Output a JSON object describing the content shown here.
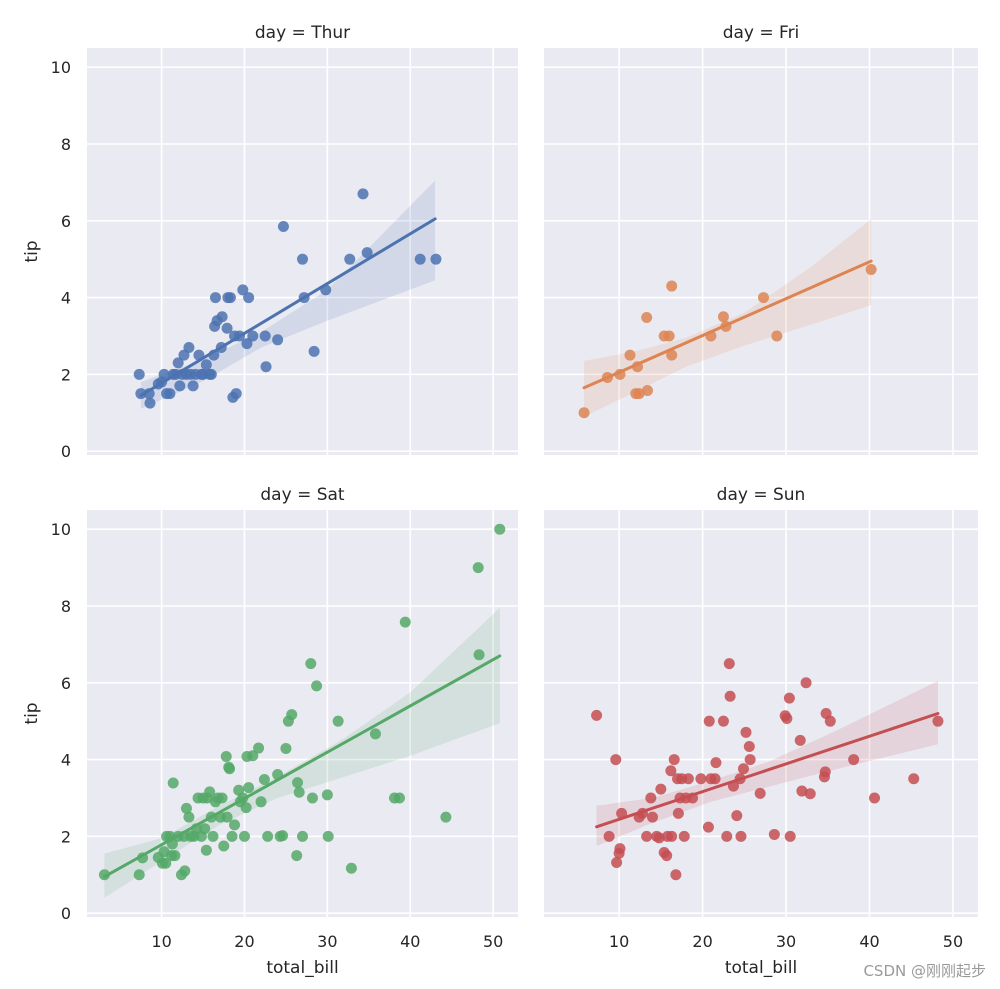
{
  "figure": {
    "watermark": "CSDN @刚刚起步",
    "colors": {
      "background": "#eaeaf2",
      "grid": "#ffffff",
      "text": "#262626"
    }
  },
  "chart_data": [
    {
      "type": "scatter",
      "title": "day = Thur",
      "xlabel": "",
      "ylabel": "tip",
      "color": "#4c72b0",
      "xlim": [
        1.0,
        53.0
      ],
      "ylim": [
        -0.1,
        10.5
      ],
      "xticks": [
        10,
        20,
        30,
        40,
        50
      ],
      "yticks": [
        0,
        2,
        4,
        6,
        8,
        10
      ],
      "show_xticklabels": false,
      "show_yticklabels": true,
      "regression": {
        "x": [
          7.5,
          43.0
        ],
        "y": [
          1.45,
          6.05
        ]
      },
      "ci": {
        "x": [
          7.5,
          15,
          22,
          30,
          43
        ],
        "lower": [
          1.1,
          1.82,
          2.7,
          3.4,
          4.45
        ],
        "upper": [
          1.8,
          2.38,
          3.1,
          4.2,
          7.05
        ]
      },
      "points": [
        {
          "x": 7.3,
          "y": 2.0
        },
        {
          "x": 7.5,
          "y": 1.5
        },
        {
          "x": 8.5,
          "y": 1.5
        },
        {
          "x": 8.6,
          "y": 1.25
        },
        {
          "x": 9.6,
          "y": 1.75
        },
        {
          "x": 10.0,
          "y": 1.8
        },
        {
          "x": 10.3,
          "y": 2.0
        },
        {
          "x": 10.6,
          "y": 1.5
        },
        {
          "x": 11.0,
          "y": 1.5
        },
        {
          "x": 11.4,
          "y": 2.0
        },
        {
          "x": 11.7,
          "y": 2.0
        },
        {
          "x": 12.0,
          "y": 2.3
        },
        {
          "x": 12.2,
          "y": 1.7
        },
        {
          "x": 12.5,
          "y": 2.0
        },
        {
          "x": 12.7,
          "y": 2.5
        },
        {
          "x": 13.0,
          "y": 2.0
        },
        {
          "x": 13.3,
          "y": 2.7
        },
        {
          "x": 13.5,
          "y": 2.0
        },
        {
          "x": 13.8,
          "y": 1.7
        },
        {
          "x": 14.1,
          "y": 2.0
        },
        {
          "x": 14.5,
          "y": 2.5
        },
        {
          "x": 14.8,
          "y": 2.0
        },
        {
          "x": 15.0,
          "y": 2.0
        },
        {
          "x": 15.4,
          "y": 2.25
        },
        {
          "x": 15.8,
          "y": 2.0
        },
        {
          "x": 16.0,
          "y": 2.0
        },
        {
          "x": 16.3,
          "y": 2.5
        },
        {
          "x": 16.4,
          "y": 3.25
        },
        {
          "x": 16.5,
          "y": 4.0
        },
        {
          "x": 16.7,
          "y": 3.4
        },
        {
          "x": 17.2,
          "y": 2.7
        },
        {
          "x": 17.3,
          "y": 3.5
        },
        {
          "x": 17.9,
          "y": 3.2
        },
        {
          "x": 18.0,
          "y": 4.0
        },
        {
          "x": 18.3,
          "y": 4.0
        },
        {
          "x": 18.6,
          "y": 1.4
        },
        {
          "x": 18.8,
          "y": 3.0
        },
        {
          "x": 19.0,
          "y": 1.5
        },
        {
          "x": 19.4,
          "y": 3.0
        },
        {
          "x": 19.8,
          "y": 4.2
        },
        {
          "x": 20.3,
          "y": 2.8
        },
        {
          "x": 20.5,
          "y": 4.0
        },
        {
          "x": 21.0,
          "y": 3.0
        },
        {
          "x": 22.5,
          "y": 3.0
        },
        {
          "x": 22.6,
          "y": 2.2
        },
        {
          "x": 24.0,
          "y": 2.9
        },
        {
          "x": 24.7,
          "y": 5.85
        },
        {
          "x": 27.0,
          "y": 5.0
        },
        {
          "x": 27.2,
          "y": 4.0
        },
        {
          "x": 28.4,
          "y": 2.6
        },
        {
          "x": 29.8,
          "y": 4.2
        },
        {
          "x": 32.7,
          "y": 5.0
        },
        {
          "x": 34.3,
          "y": 6.7
        },
        {
          "x": 34.8,
          "y": 5.17
        },
        {
          "x": 41.2,
          "y": 5.0
        },
        {
          "x": 43.1,
          "y": 5.0
        }
      ]
    },
    {
      "type": "scatter",
      "title": "day = Fri",
      "xlabel": "",
      "ylabel": "",
      "color": "#dd8452",
      "xlim": [
        1.0,
        53.0
      ],
      "ylim": [
        -0.1,
        10.5
      ],
      "xticks": [
        10,
        20,
        30,
        40,
        50
      ],
      "yticks": [
        0,
        2,
        4,
        6,
        8,
        10
      ],
      "show_xticklabels": false,
      "show_yticklabels": false,
      "regression": {
        "x": [
          5.8,
          40.2
        ],
        "y": [
          1.65,
          4.95
        ]
      },
      "ci": {
        "x": [
          5.8,
          12,
          18,
          25,
          33,
          40.2
        ],
        "lower": [
          0.9,
          1.55,
          2.2,
          2.75,
          3.3,
          3.8
        ],
        "upper": [
          2.35,
          2.6,
          2.95,
          3.6,
          4.8,
          6.05
        ]
      },
      "points": [
        {
          "x": 5.8,
          "y": 1.0
        },
        {
          "x": 8.6,
          "y": 1.92
        },
        {
          "x": 10.1,
          "y": 2.0
        },
        {
          "x": 11.3,
          "y": 2.5
        },
        {
          "x": 12.0,
          "y": 1.5
        },
        {
          "x": 12.2,
          "y": 2.2
        },
        {
          "x": 12.4,
          "y": 1.5
        },
        {
          "x": 13.3,
          "y": 3.48
        },
        {
          "x": 13.4,
          "y": 1.58
        },
        {
          "x": 15.4,
          "y": 3.0
        },
        {
          "x": 16.0,
          "y": 3.0
        },
        {
          "x": 16.3,
          "y": 4.3
        },
        {
          "x": 16.3,
          "y": 2.5
        },
        {
          "x": 21.0,
          "y": 3.0
        },
        {
          "x": 22.5,
          "y": 3.5
        },
        {
          "x": 22.8,
          "y": 3.25
        },
        {
          "x": 27.3,
          "y": 4.0
        },
        {
          "x": 28.9,
          "y": 3.0
        },
        {
          "x": 40.2,
          "y": 4.73
        }
      ]
    },
    {
      "type": "scatter",
      "title": "day = Sat",
      "xlabel": "total_bill",
      "ylabel": "tip",
      "color": "#55a868",
      "xlim": [
        1.0,
        53.0
      ],
      "ylim": [
        -0.1,
        10.5
      ],
      "xticks": [
        10,
        20,
        30,
        40,
        50
      ],
      "yticks": [
        0,
        2,
        4,
        6,
        8,
        10
      ],
      "show_xticklabels": true,
      "show_yticklabels": true,
      "regression": {
        "x": [
          3.1,
          50.8
        ],
        "y": [
          0.95,
          6.7
        ]
      },
      "ci": {
        "x": [
          3.1,
          10,
          17,
          24,
          32,
          40,
          50.8
        ],
        "lower": [
          0.4,
          1.35,
          2.3,
          3.0,
          3.55,
          4.1,
          4.95
        ],
        "upper": [
          1.55,
          1.95,
          2.8,
          3.55,
          4.55,
          5.75,
          7.95
        ]
      },
      "points": [
        {
          "x": 3.1,
          "y": 1.0
        },
        {
          "x": 7.3,
          "y": 1.0
        },
        {
          "x": 7.7,
          "y": 1.44
        },
        {
          "x": 9.6,
          "y": 1.45
        },
        {
          "x": 10.1,
          "y": 1.3
        },
        {
          "x": 10.3,
          "y": 1.6
        },
        {
          "x": 10.5,
          "y": 1.3
        },
        {
          "x": 10.6,
          "y": 2.0
        },
        {
          "x": 11.0,
          "y": 2.0
        },
        {
          "x": 11.2,
          "y": 1.5
        },
        {
          "x": 11.3,
          "y": 1.8
        },
        {
          "x": 11.4,
          "y": 3.39
        },
        {
          "x": 11.6,
          "y": 1.5
        },
        {
          "x": 12.0,
          "y": 2.0
        },
        {
          "x": 12.4,
          "y": 1.0
        },
        {
          "x": 12.7,
          "y": 2.0
        },
        {
          "x": 12.8,
          "y": 1.1
        },
        {
          "x": 13.0,
          "y": 2.73
        },
        {
          "x": 13.3,
          "y": 2.5
        },
        {
          "x": 13.5,
          "y": 2.0
        },
        {
          "x": 13.9,
          "y": 2.0
        },
        {
          "x": 14.2,
          "y": 2.2
        },
        {
          "x": 14.4,
          "y": 3.0
        },
        {
          "x": 14.8,
          "y": 2.0
        },
        {
          "x": 15.0,
          "y": 3.0
        },
        {
          "x": 15.2,
          "y": 2.2
        },
        {
          "x": 15.4,
          "y": 1.64
        },
        {
          "x": 15.5,
          "y": 3.0
        },
        {
          "x": 15.8,
          "y": 3.16
        },
        {
          "x": 16.0,
          "y": 2.5
        },
        {
          "x": 16.2,
          "y": 2.0
        },
        {
          "x": 16.5,
          "y": 2.9
        },
        {
          "x": 16.8,
          "y": 3.0
        },
        {
          "x": 17.1,
          "y": 2.5
        },
        {
          "x": 17.3,
          "y": 3.0
        },
        {
          "x": 17.5,
          "y": 1.75
        },
        {
          "x": 17.8,
          "y": 4.08
        },
        {
          "x": 17.9,
          "y": 2.5
        },
        {
          "x": 18.1,
          "y": 3.8
        },
        {
          "x": 18.2,
          "y": 3.76
        },
        {
          "x": 18.5,
          "y": 2.0
        },
        {
          "x": 18.8,
          "y": 2.3
        },
        {
          "x": 19.3,
          "y": 3.2
        },
        {
          "x": 19.5,
          "y": 2.9
        },
        {
          "x": 19.8,
          "y": 3.0
        },
        {
          "x": 20.0,
          "y": 2.0
        },
        {
          "x": 20.2,
          "y": 2.75
        },
        {
          "x": 20.3,
          "y": 4.08
        },
        {
          "x": 20.5,
          "y": 3.27
        },
        {
          "x": 21.0,
          "y": 4.1
        },
        {
          "x": 21.7,
          "y": 4.3
        },
        {
          "x": 22.0,
          "y": 2.9
        },
        {
          "x": 22.4,
          "y": 3.48
        },
        {
          "x": 22.8,
          "y": 2.0
        },
        {
          "x": 24.0,
          "y": 3.61
        },
        {
          "x": 24.3,
          "y": 2.0
        },
        {
          "x": 24.6,
          "y": 2.02
        },
        {
          "x": 25.0,
          "y": 4.29
        },
        {
          "x": 25.3,
          "y": 5.0
        },
        {
          "x": 25.7,
          "y": 5.17
        },
        {
          "x": 26.3,
          "y": 1.5
        },
        {
          "x": 26.4,
          "y": 3.4
        },
        {
          "x": 26.6,
          "y": 3.15
        },
        {
          "x": 27.0,
          "y": 2.0
        },
        {
          "x": 28.0,
          "y": 6.5
        },
        {
          "x": 28.2,
          "y": 3.0
        },
        {
          "x": 28.7,
          "y": 5.92
        },
        {
          "x": 30.0,
          "y": 3.08
        },
        {
          "x": 30.1,
          "y": 2.0
        },
        {
          "x": 31.3,
          "y": 5.0
        },
        {
          "x": 32.9,
          "y": 1.17
        },
        {
          "x": 35.8,
          "y": 4.67
        },
        {
          "x": 38.1,
          "y": 3.0
        },
        {
          "x": 38.7,
          "y": 3.0
        },
        {
          "x": 39.4,
          "y": 7.58
        },
        {
          "x": 44.3,
          "y": 2.5
        },
        {
          "x": 48.2,
          "y": 9.0
        },
        {
          "x": 48.3,
          "y": 6.73
        },
        {
          "x": 50.8,
          "y": 10.0
        }
      ]
    },
    {
      "type": "scatter",
      "title": "day = Sun",
      "xlabel": "total_bill",
      "ylabel": "",
      "color": "#c44e52",
      "xlim": [
        1.0,
        53.0
      ],
      "ylim": [
        -0.1,
        10.5
      ],
      "xticks": [
        10,
        20,
        30,
        40,
        50
      ],
      "yticks": [
        0,
        2,
        4,
        6,
        8,
        10
      ],
      "show_xticklabels": true,
      "show_yticklabels": false,
      "regression": {
        "x": [
          7.3,
          48.2
        ],
        "y": [
          2.25,
          5.2
        ]
      },
      "ci": {
        "x": [
          7.3,
          14,
          21,
          28,
          36,
          48.2
        ],
        "lower": [
          1.75,
          2.35,
          2.9,
          3.3,
          3.75,
          4.4
        ],
        "upper": [
          2.8,
          3.0,
          3.45,
          3.95,
          4.75,
          6.05
        ]
      },
      "points": [
        {
          "x": 7.3,
          "y": 5.15
        },
        {
          "x": 8.8,
          "y": 2.0
        },
        {
          "x": 9.6,
          "y": 4.0
        },
        {
          "x": 9.7,
          "y": 1.32
        },
        {
          "x": 10.0,
          "y": 1.56
        },
        {
          "x": 10.1,
          "y": 1.68
        },
        {
          "x": 10.3,
          "y": 2.6
        },
        {
          "x": 12.4,
          "y": 2.5
        },
        {
          "x": 12.8,
          "y": 2.6
        },
        {
          "x": 13.3,
          "y": 2.0
        },
        {
          "x": 13.8,
          "y": 3.0
        },
        {
          "x": 14.0,
          "y": 2.5
        },
        {
          "x": 14.5,
          "y": 2.0
        },
        {
          "x": 14.8,
          "y": 1.96
        },
        {
          "x": 15.0,
          "y": 3.23
        },
        {
          "x": 15.4,
          "y": 1.58
        },
        {
          "x": 15.7,
          "y": 1.5
        },
        {
          "x": 15.8,
          "y": 2.0
        },
        {
          "x": 16.2,
          "y": 3.71
        },
        {
          "x": 16.3,
          "y": 2.0
        },
        {
          "x": 16.6,
          "y": 4.0
        },
        {
          "x": 16.8,
          "y": 1.0
        },
        {
          "x": 17.0,
          "y": 3.5
        },
        {
          "x": 17.1,
          "y": 2.6
        },
        {
          "x": 17.3,
          "y": 3.0
        },
        {
          "x": 17.5,
          "y": 3.5
        },
        {
          "x": 17.8,
          "y": 2.0
        },
        {
          "x": 18.0,
          "y": 3.0
        },
        {
          "x": 18.3,
          "y": 3.5
        },
        {
          "x": 18.8,
          "y": 3.0
        },
        {
          "x": 19.8,
          "y": 3.5
        },
        {
          "x": 20.7,
          "y": 2.24
        },
        {
          "x": 20.8,
          "y": 5.0
        },
        {
          "x": 21.0,
          "y": 3.5
        },
        {
          "x": 21.5,
          "y": 3.5
        },
        {
          "x": 21.6,
          "y": 3.92
        },
        {
          "x": 22.5,
          "y": 5.0
        },
        {
          "x": 22.9,
          "y": 2.0
        },
        {
          "x": 23.2,
          "y": 6.5
        },
        {
          "x": 23.3,
          "y": 5.65
        },
        {
          "x": 23.7,
          "y": 3.31
        },
        {
          "x": 24.1,
          "y": 2.54
        },
        {
          "x": 24.5,
          "y": 3.5
        },
        {
          "x": 24.6,
          "y": 2.0
        },
        {
          "x": 24.9,
          "y": 3.76
        },
        {
          "x": 25.2,
          "y": 4.71
        },
        {
          "x": 25.6,
          "y": 4.34
        },
        {
          "x": 25.7,
          "y": 4.0
        },
        {
          "x": 26.9,
          "y": 3.12
        },
        {
          "x": 28.6,
          "y": 2.05
        },
        {
          "x": 29.9,
          "y": 5.14
        },
        {
          "x": 30.1,
          "y": 5.07
        },
        {
          "x": 30.4,
          "y": 5.6
        },
        {
          "x": 30.5,
          "y": 2.0
        },
        {
          "x": 31.7,
          "y": 4.5
        },
        {
          "x": 31.9,
          "y": 3.18
        },
        {
          "x": 32.4,
          "y": 6.0
        },
        {
          "x": 32.9,
          "y": 3.11
        },
        {
          "x": 34.6,
          "y": 3.55
        },
        {
          "x": 34.7,
          "y": 3.68
        },
        {
          "x": 34.8,
          "y": 5.2
        },
        {
          "x": 35.3,
          "y": 5.0
        },
        {
          "x": 38.1,
          "y": 4.0
        },
        {
          "x": 40.6,
          "y": 3.0
        },
        {
          "x": 45.3,
          "y": 3.5
        },
        {
          "x": 48.2,
          "y": 5.0
        }
      ]
    }
  ]
}
